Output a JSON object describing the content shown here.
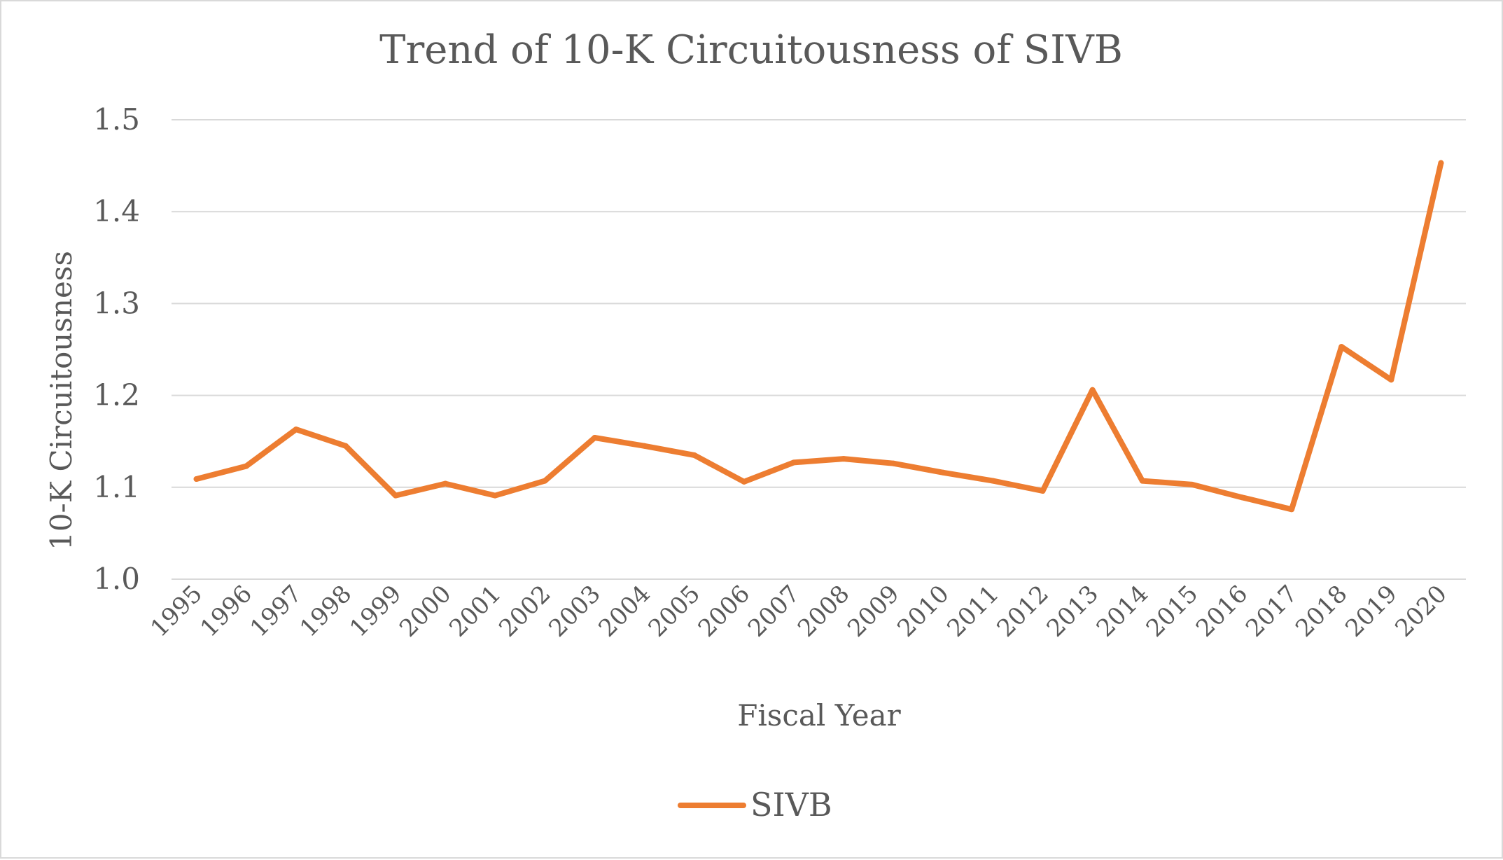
{
  "chart_data": {
    "type": "line",
    "title": "Trend of 10-K Circuitousness of SIVB",
    "xlabel": "Fiscal Year",
    "ylabel": "10-K Circuitousness",
    "ylim": [
      1.0,
      1.5
    ],
    "yticks": [
      "1.0",
      "1.1",
      "1.2",
      "1.3",
      "1.4",
      "1.5"
    ],
    "grid": true,
    "legend_position": "bottom",
    "categories": [
      "1995",
      "1996",
      "1997",
      "1998",
      "1999",
      "2000",
      "2001",
      "2002",
      "2003",
      "2004",
      "2005",
      "2006",
      "2007",
      "2008",
      "2009",
      "2010",
      "2011",
      "2012",
      "2013",
      "2014",
      "2015",
      "2016",
      "2017",
      "2018",
      "2019",
      "2020"
    ],
    "series": [
      {
        "name": "SIVB",
        "color": "#ed7d31",
        "values": [
          1.109,
          1.123,
          1.163,
          1.145,
          1.091,
          1.104,
          1.091,
          1.107,
          1.154,
          1.145,
          1.135,
          1.106,
          1.127,
          1.131,
          1.126,
          1.116,
          1.107,
          1.096,
          1.206,
          1.107,
          1.103,
          1.089,
          1.076,
          1.253,
          1.217,
          1.453
        ]
      }
    ]
  }
}
